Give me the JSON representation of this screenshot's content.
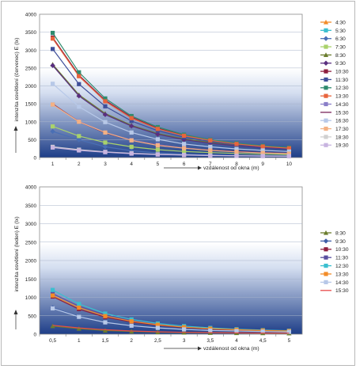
{
  "chart_data": [
    {
      "type": "line",
      "title": "",
      "ylabel": "intenzita osvětlení (červenec) E (lx)",
      "xlabel": "vzdálenost od okna (m)",
      "ylim": [
        0,
        4000
      ],
      "yticks": [
        "0",
        "500",
        "1000",
        "1500",
        "2000",
        "2500",
        "3000",
        "3500",
        "4000"
      ],
      "categories": [
        "1",
        "2",
        "3",
        "4",
        "5",
        "6",
        "7",
        "8",
        "9",
        "10"
      ],
      "grid": true,
      "legend": "right",
      "series": [
        {
          "name": "4:30",
          "color": "#f28c28",
          "marker": "triangle",
          "values": [
            null,
            null,
            null,
            null,
            null,
            null,
            null,
            null,
            null,
            null
          ]
        },
        {
          "name": "5:30",
          "color": "#3bbfcf",
          "marker": "square",
          "values": [
            null,
            null,
            null,
            null,
            null,
            null,
            null,
            null,
            null,
            null
          ]
        },
        {
          "name": "6:30",
          "color": "#4a6fb5",
          "marker": "diamond",
          "values": [
            730,
            500,
            300,
            190,
            130,
            95,
            75,
            60,
            50,
            45
          ]
        },
        {
          "name": "7:30",
          "color": "#a9d26b",
          "marker": "square",
          "values": [
            870,
            600,
            420,
            300,
            220,
            170,
            140,
            115,
            95,
            85
          ]
        },
        {
          "name": "8:30",
          "color": "#6b7d2e",
          "marker": "triangle",
          "values": [
            2600,
            1750,
            1230,
            900,
            670,
            520,
            420,
            340,
            290,
            250
          ]
        },
        {
          "name": "9:30",
          "color": "#5a2f80",
          "marker": "diamond",
          "values": [
            2570,
            1720,
            1200,
            880,
            650,
            500,
            400,
            330,
            280,
            240
          ]
        },
        {
          "name": "10:30",
          "color": "#8e1f3e",
          "marker": "square",
          "values": [
            3350,
            2300,
            1600,
            1130,
            820,
            620,
            490,
            390,
            320,
            270
          ]
        },
        {
          "name": "11:30",
          "color": "#3f4f9a",
          "marker": "square",
          "values": [
            3030,
            2050,
            1430,
            1020,
            750,
            570,
            450,
            360,
            300,
            260
          ]
        },
        {
          "name": "12:30",
          "color": "#2e8b6e",
          "marker": "square",
          "values": [
            3480,
            2380,
            1650,
            1160,
            850,
            640,
            500,
            400,
            330,
            280
          ]
        },
        {
          "name": "13:30",
          "color": "#e8643c",
          "marker": "square",
          "values": [
            3320,
            2270,
            1570,
            1100,
            800,
            610,
            480,
            380,
            310,
            260
          ]
        },
        {
          "name": "14:30",
          "color": "#8a7ec8",
          "marker": "square",
          "values": [
            1480,
            1010,
            700,
            490,
            360,
            270,
            210,
            170,
            140,
            120
          ]
        },
        {
          "name": "15:30",
          "color": "#7a2458",
          "marker": "none",
          "values": [
            1500,
            1000,
            690,
            480,
            350,
            260,
            210,
            170,
            140,
            120
          ]
        },
        {
          "name": "16:30",
          "color": "#b7c8e8",
          "marker": "square",
          "values": [
            2060,
            1420,
            990,
            700,
            510,
            380,
            300,
            240,
            200,
            170
          ]
        },
        {
          "name": "17:30",
          "color": "#f4b183",
          "marker": "square",
          "values": [
            1480,
            1000,
            700,
            480,
            340,
            260,
            200,
            160,
            130,
            110
          ]
        },
        {
          "name": "18:30",
          "color": "#d0d0d0",
          "marker": "square",
          "values": [
            300,
            220,
            160,
            120,
            90,
            75,
            60,
            50,
            45,
            40
          ]
        },
        {
          "name": "19:30",
          "color": "#c8b4e0",
          "marker": "square",
          "values": [
            280,
            200,
            150,
            110,
            85,
            70,
            55,
            48,
            42,
            38
          ]
        }
      ]
    },
    {
      "type": "line",
      "title": "",
      "ylabel": "intenzita osvětlení (leden) E (lx)",
      "xlabel": "vzdálenost od okna (m)",
      "ylim": [
        0,
        4000
      ],
      "yticks": [
        "0",
        "500",
        "1000",
        "1500",
        "2000",
        "2500",
        "3000",
        "3500",
        "4000"
      ],
      "categories": [
        "0,5",
        "1",
        "1,5",
        "2",
        "2,5",
        "3",
        "3,5",
        "4",
        "4,5",
        "5"
      ],
      "grid": true,
      "legend": "right",
      "series": [
        {
          "name": "8:30",
          "color": "#6b7d2e",
          "marker": "triangle",
          "values": [
            220,
            150,
            100,
            75,
            55,
            45,
            38,
            32,
            28,
            25
          ]
        },
        {
          "name": "9:30",
          "color": "#3f5fa8",
          "marker": "diamond",
          "values": [
            720,
            480,
            330,
            240,
            180,
            140,
            110,
            90,
            80,
            70
          ]
        },
        {
          "name": "10:30",
          "color": "#8e1f3e",
          "marker": "square",
          "values": [
            1020,
            680,
            460,
            330,
            240,
            180,
            140,
            115,
            95,
            80
          ]
        },
        {
          "name": "11:30",
          "color": "#5a4fa0",
          "marker": "square",
          "values": [
            1100,
            760,
            520,
            370,
            270,
            200,
            155,
            125,
            105,
            90
          ]
        },
        {
          "name": "12:30",
          "color": "#3bbfcf",
          "marker": "square",
          "values": [
            1200,
            820,
            560,
            400,
            290,
            220,
            170,
            135,
            110,
            95
          ]
        },
        {
          "name": "13:30",
          "color": "#f28c28",
          "marker": "square",
          "values": [
            1050,
            720,
            490,
            350,
            255,
            190,
            150,
            120,
            100,
            85
          ]
        },
        {
          "name": "14:30",
          "color": "#b7c8e8",
          "marker": "square",
          "values": [
            700,
            470,
            320,
            230,
            170,
            130,
            100,
            85,
            72,
            62
          ]
        },
        {
          "name": "15:30",
          "color": "#e84b4b",
          "marker": "none",
          "values": [
            240,
            170,
            120,
            85,
            65,
            50,
            42,
            35,
            30,
            27
          ]
        }
      ]
    }
  ]
}
